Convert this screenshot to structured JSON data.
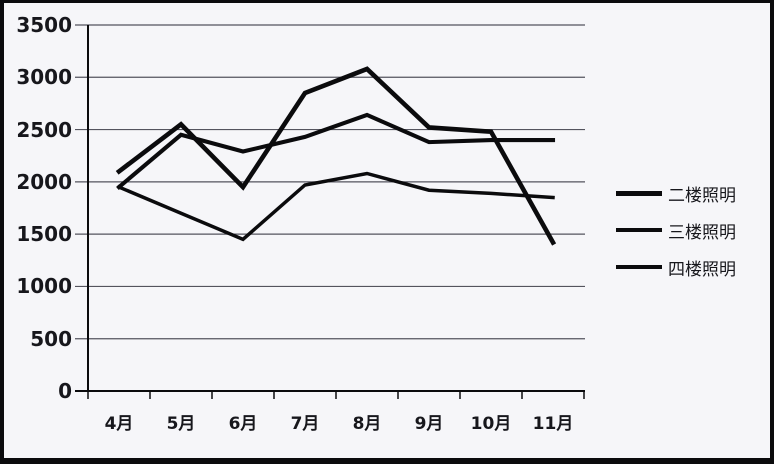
{
  "window": {
    "background": "#f6f6f9",
    "frame_color": "#0b0b0d"
  },
  "chart_data": {
    "type": "line",
    "title": "",
    "xlabel": "",
    "ylabel": "",
    "categories": [
      "4月",
      "5月",
      "6月",
      "7月",
      "8月",
      "9月",
      "10月",
      "11月"
    ],
    "series": [
      {
        "name": "二楼照明",
        "values": [
          2100,
          2550,
          1950,
          2850,
          3080,
          2520,
          2480,
          1420
        ]
      },
      {
        "name": "三楼照明",
        "values": [
          1950,
          2450,
          2290,
          2430,
          2640,
          2380,
          2400,
          2400
        ]
      },
      {
        "name": "四楼照明",
        "values": [
          1950,
          1700,
          1450,
          1970,
          2080,
          1920,
          1890,
          1850
        ]
      }
    ],
    "ylim": [
      0,
      3500
    ],
    "ytick_step": 500,
    "ytick_labels": [
      "0",
      "500",
      "1000",
      "1500",
      "2000",
      "2500",
      "3000",
      "3500"
    ],
    "grid": "horizontal",
    "legend_position": "right",
    "line_color": "#0b0b0d",
    "gridline_color": "#54545e",
    "axis_color": "#17171c"
  }
}
